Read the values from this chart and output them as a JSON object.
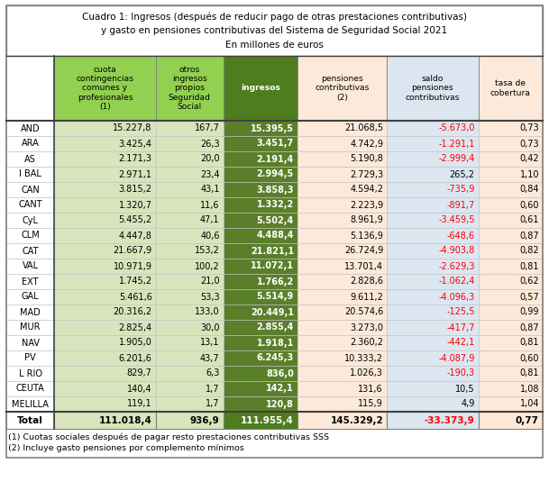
{
  "title_line1": "Cuadro 1: Ingresos (después de reducir pago de otras prestaciones contributivas)",
  "title_line2": "y gasto en pensiones contributivas del Sistema de Seguridad Social 2021",
  "title_line3": "En millones de euros",
  "col_headers": [
    "cuota\ncontingencias\ncomunes y\nprofesionales\n(1)",
    "otros\ningresos\npropios\nSeguridad\nSocial",
    "ingresos",
    "pensiones\ncontributivas\n(2)",
    "saldo\npensiones\ncontributivas",
    "tasa de\ncobertura"
  ],
  "rows": [
    [
      "AND",
      "15.227,8",
      "167,7",
      "15.395,5",
      "21.068,5",
      "-5.673,0",
      "0,73"
    ],
    [
      "ARA",
      "3.425,4",
      "26,3",
      "3.451,7",
      "4.742,9",
      "-1.291,1",
      "0,73"
    ],
    [
      "AS",
      "2.171,3",
      "20,0",
      "2.191,4",
      "5.190,8",
      "-2.999,4",
      "0,42"
    ],
    [
      "I BAL",
      "2.971,1",
      "23,4",
      "2.994,5",
      "2.729,3",
      "265,2",
      "1,10"
    ],
    [
      "CAN",
      "3.815,2",
      "43,1",
      "3.858,3",
      "4.594,2",
      "-735,9",
      "0,84"
    ],
    [
      "CANT",
      "1.320,7",
      "11,6",
      "1.332,2",
      "2.223,9",
      "-891,7",
      "0,60"
    ],
    [
      "CyL",
      "5.455,2",
      "47,1",
      "5.502,4",
      "8.961,9",
      "-3.459,5",
      "0,61"
    ],
    [
      "CLM",
      "4.447,8",
      "40,6",
      "4.488,4",
      "5.136,9",
      "-648,6",
      "0,87"
    ],
    [
      "CAT",
      "21.667,9",
      "153,2",
      "21.821,1",
      "26.724,9",
      "-4.903,8",
      "0,82"
    ],
    [
      "VAL",
      "10.971,9",
      "100,2",
      "11.072,1",
      "13.701,4",
      "-2.629,3",
      "0,81"
    ],
    [
      "EXT",
      "1.745,2",
      "21,0",
      "1.766,2",
      "2.828,6",
      "-1.062,4",
      "0,62"
    ],
    [
      "GAL",
      "5.461,6",
      "53,3",
      "5.514,9",
      "9.611,2",
      "-4.096,3",
      "0,57"
    ],
    [
      "MAD",
      "20.316,2",
      "133,0",
      "20.449,1",
      "20.574,6",
      "-125,5",
      "0,99"
    ],
    [
      "MUR",
      "2.825,4",
      "30,0",
      "2.855,4",
      "3.273,0",
      "-417,7",
      "0,87"
    ],
    [
      "NAV",
      "1.905,0",
      "13,1",
      "1.918,1",
      "2.360,2",
      "-442,1",
      "0,81"
    ],
    [
      "PV",
      "6.201,6",
      "43,7",
      "6.245,3",
      "10.333,2",
      "-4.087,9",
      "0,60"
    ],
    [
      "L RIO",
      "829,7",
      "6,3",
      "836,0",
      "1.026,3",
      "-190,3",
      "0,81"
    ],
    [
      "CEUTA",
      "140,4",
      "1,7",
      "142,1",
      "131,6",
      "10,5",
      "1,08"
    ],
    [
      "MELILLA",
      "119,1",
      "1,7",
      "120,8",
      "115,9",
      "4,9",
      "1,04"
    ]
  ],
  "total_row": [
    "Total",
    "111.018,4",
    "936,9",
    "111.955,4",
    "145.329,2",
    "-33.373,9",
    "0,77"
  ],
  "footnotes": [
    "(1) Cuotas sociales después de pagar resto prestaciones contributivas SSS",
    "(2) Incluye gasto pensiones por complemento mínimos"
  ],
  "col_colors": {
    "header_col0": "#ffffff",
    "header_col1": "#92d050",
    "header_col2": "#92d050",
    "header_col3": "#4e7d1e",
    "header_col4": "#fde9d9",
    "header_col5": "#dce6f1",
    "header_col6": "#fde9d9",
    "data_col0": "#ffffff",
    "data_col1": "#d8e4bc",
    "data_col2": "#d8e4bc",
    "data_col3": "#5a7f2a",
    "data_col4": "#fde9d9",
    "data_col5": "#dce6f1",
    "data_col6": "#fde9d9",
    "total_col0": "#ffffff",
    "total_col1": "#d8e4bc",
    "total_col2": "#d8e4bc",
    "total_col3": "#4e7d1e",
    "total_col4": "#fde9d9",
    "total_col5": "#dce6f1",
    "total_col6": "#fde9d9"
  },
  "negative_color": "#ff0000",
  "positive_color": "#000000",
  "ingresos_text_color": "#ffffff",
  "total_ingresos_text_color": "#ffffff",
  "outer_border_color": "#808080",
  "inner_border_color": "#a0a0a0",
  "thick_border_color": "#404040"
}
